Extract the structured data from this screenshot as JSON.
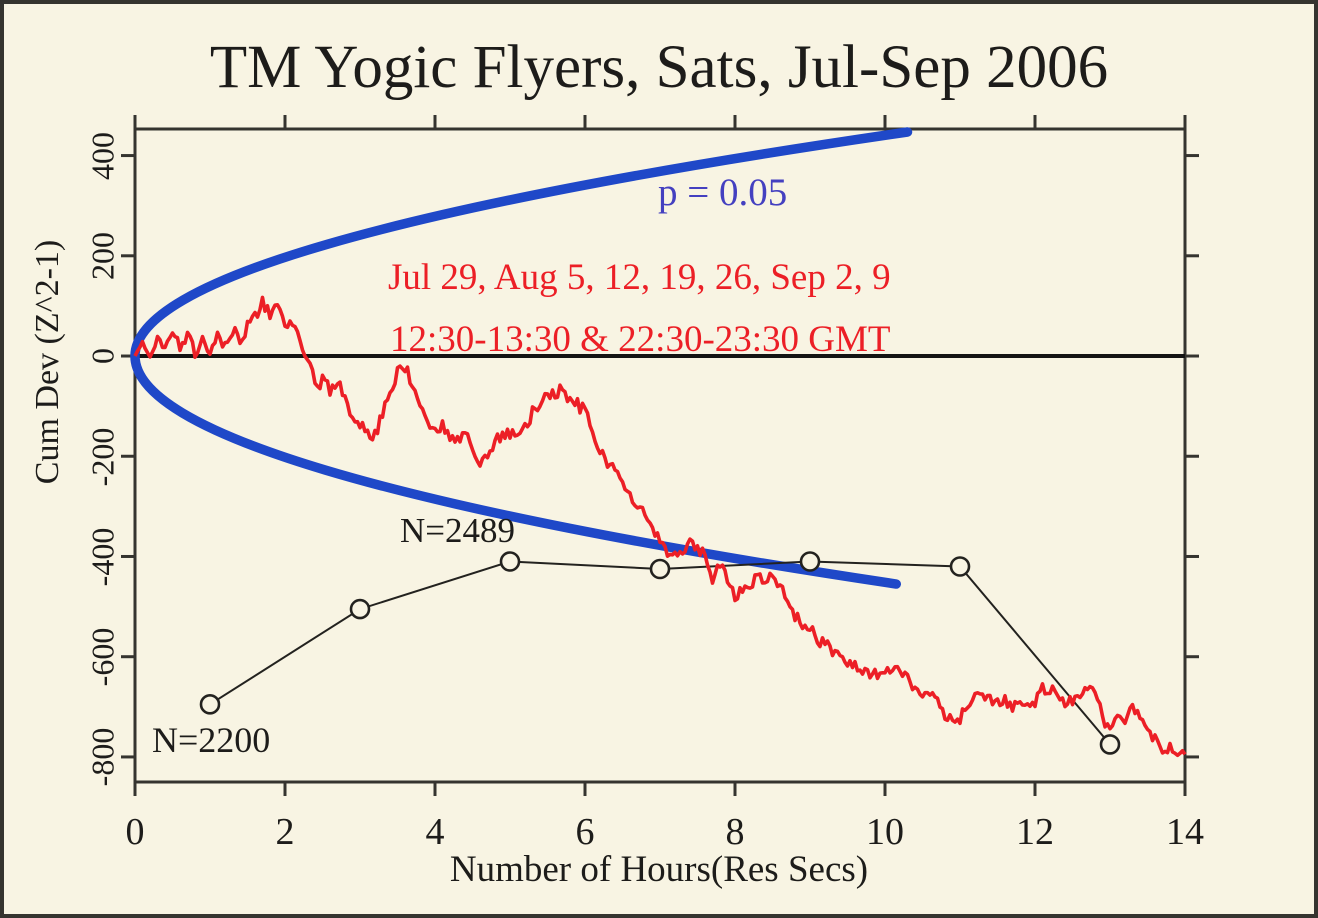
{
  "colors": {
    "background": "#f8f4e3",
    "ink": "#1d1c1a",
    "frame": "#35342f",
    "red_series": "#ec1f26",
    "envelope_blue": "#1f48c8",
    "p_label_blue": "#4440c0"
  },
  "annotations": {
    "p_label": "p = 0.05",
    "dates_line1": "Jul 29, Aug 5, 12, 19, 26, Sep 2, 9",
    "dates_line2": "12:30-13:30 & 22:30-23:30 GMT",
    "n_high": "N=2489",
    "n_low": "N=2200"
  },
  "chart_data": {
    "type": "line",
    "title": "TM Yogic Flyers, Sats, Jul-Sep 2006",
    "xlabel": "Number of Hours(Res Secs)",
    "ylabel": "Cum Dev (Z^2-1)",
    "xlim": [
      0,
      14
    ],
    "ylim": [
      -850,
      453
    ],
    "x_ticks": [
      0,
      2,
      4,
      6,
      8,
      10,
      12,
      14
    ],
    "y_ticks": [
      400,
      200,
      0,
      -200,
      -400,
      -600,
      -800
    ],
    "x_tick_labels": [
      "0",
      "2",
      "4",
      "6",
      "8",
      "10",
      "12",
      "14"
    ],
    "y_tick_labels": [
      "400",
      "200",
      "0",
      "-200",
      "-400",
      "-600",
      "-800"
    ],
    "baseline_y": 0,
    "grid": false,
    "red_series": {
      "name": "cumulative-deviation",
      "x_start": 0,
      "x_step": 0.1,
      "y": [
        0,
        28,
        -5,
        38,
        12,
        48,
        20,
        42,
        8,
        35,
        15,
        48,
        22,
        55,
        30,
        60,
        80,
        110,
        82,
        98,
        62,
        72,
        30,
        0,
        -58,
        -50,
        -68,
        -58,
        -78,
        -120,
        -140,
        -155,
        -160,
        -110,
        -70,
        -30,
        -22,
        -60,
        -95,
        -125,
        -150,
        -138,
        -165,
        -172,
        -152,
        -190,
        -212,
        -196,
        -172,
        -152,
        -162,
        -146,
        -140,
        -112,
        -92,
        -76,
        -72,
        -68,
        -86,
        -96,
        -112,
        -150,
        -182,
        -212,
        -235,
        -252,
        -280,
        -302,
        -318,
        -342,
        -372,
        -396,
        -404,
        -398,
        -362,
        -382,
        -398,
        -448,
        -412,
        -442,
        -482,
        -465,
        -452,
        -446,
        -442,
        -438,
        -456,
        -490,
        -516,
        -532,
        -548,
        -562,
        -576,
        -586,
        -600,
        -612,
        -616,
        -630,
        -642,
        -636,
        -626,
        -628,
        -632,
        -646,
        -656,
        -668,
        -680,
        -690,
        -712,
        -732,
        -720,
        -696,
        -676,
        -680,
        -682,
        -686,
        -690,
        -696,
        -700,
        -702,
        -690,
        -660,
        -666,
        -680,
        -696,
        -690,
        -670,
        -658,
        -662,
        -720,
        -746,
        -730,
        -726,
        -706,
        -712,
        -740,
        -766,
        -800,
        -782,
        -788,
        -795
      ]
    },
    "n_series": {
      "name": "N-per-hour",
      "marker": "open-circle",
      "points": [
        [
          1,
          -695
        ],
        [
          3,
          -505
        ],
        [
          5,
          -410
        ],
        [
          7,
          -425
        ],
        [
          9,
          -410
        ],
        [
          11,
          -420
        ],
        [
          13,
          -775
        ]
      ]
    },
    "envelope": {
      "name": "p05-significance-envelope",
      "p_value": 0.05,
      "shape": "sqrt",
      "vertex": [
        0,
        0
      ],
      "upper_end": [
        10.3,
        447
      ],
      "lower_end": [
        10.15,
        -455
      ]
    }
  }
}
